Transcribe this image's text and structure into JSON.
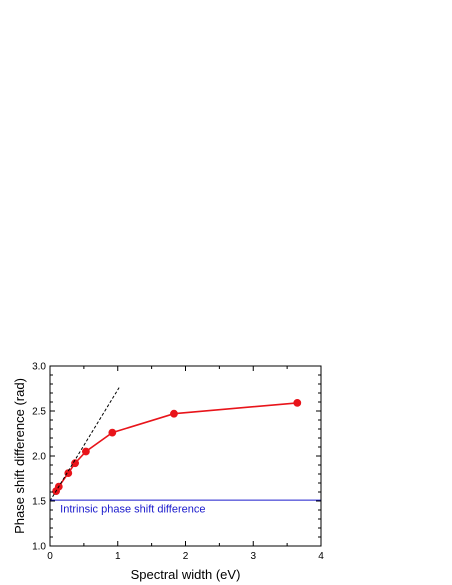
{
  "chart_data": {
    "type": "line",
    "title": "",
    "xlabel": "Spectral width (eV)",
    "ylabel": "Phase shift difference (rad)",
    "xlim": [
      0,
      4
    ],
    "ylim": [
      1.0,
      3.0
    ],
    "xticks": [
      0,
      1,
      2,
      3,
      4
    ],
    "xtick_labels": [
      "0",
      "1",
      "2",
      "3",
      "4"
    ],
    "yticks": [
      1.0,
      1.5,
      2.0,
      2.5,
      3.0
    ],
    "ytick_labels": [
      "1.0",
      "1.5",
      "2.0",
      "2.5",
      "3.0"
    ],
    "grid": false,
    "series": [
      {
        "style": "solid line with filled circle markers",
        "color": "#e8141a",
        "x": [
          0.09,
          0.13,
          0.27,
          0.37,
          0.53,
          0.92,
          1.83,
          3.65
        ],
        "y": [
          1.61,
          1.66,
          1.81,
          1.92,
          2.05,
          2.26,
          2.47,
          2.59
        ]
      },
      {
        "style": "dashed line",
        "color": "#000000",
        "x": [
          0.0,
          1.02
        ],
        "y": [
          1.5,
          2.76
        ]
      },
      {
        "style": "horizontal line",
        "color": "#1a1acc",
        "x": [
          0,
          4
        ],
        "y": [
          1.51,
          1.51
        ]
      }
    ],
    "annotations": [
      {
        "text": "Intrinsic phase shift difference",
        "color": "#1a1acc",
        "x": 0.15,
        "y": 1.37
      }
    ]
  }
}
